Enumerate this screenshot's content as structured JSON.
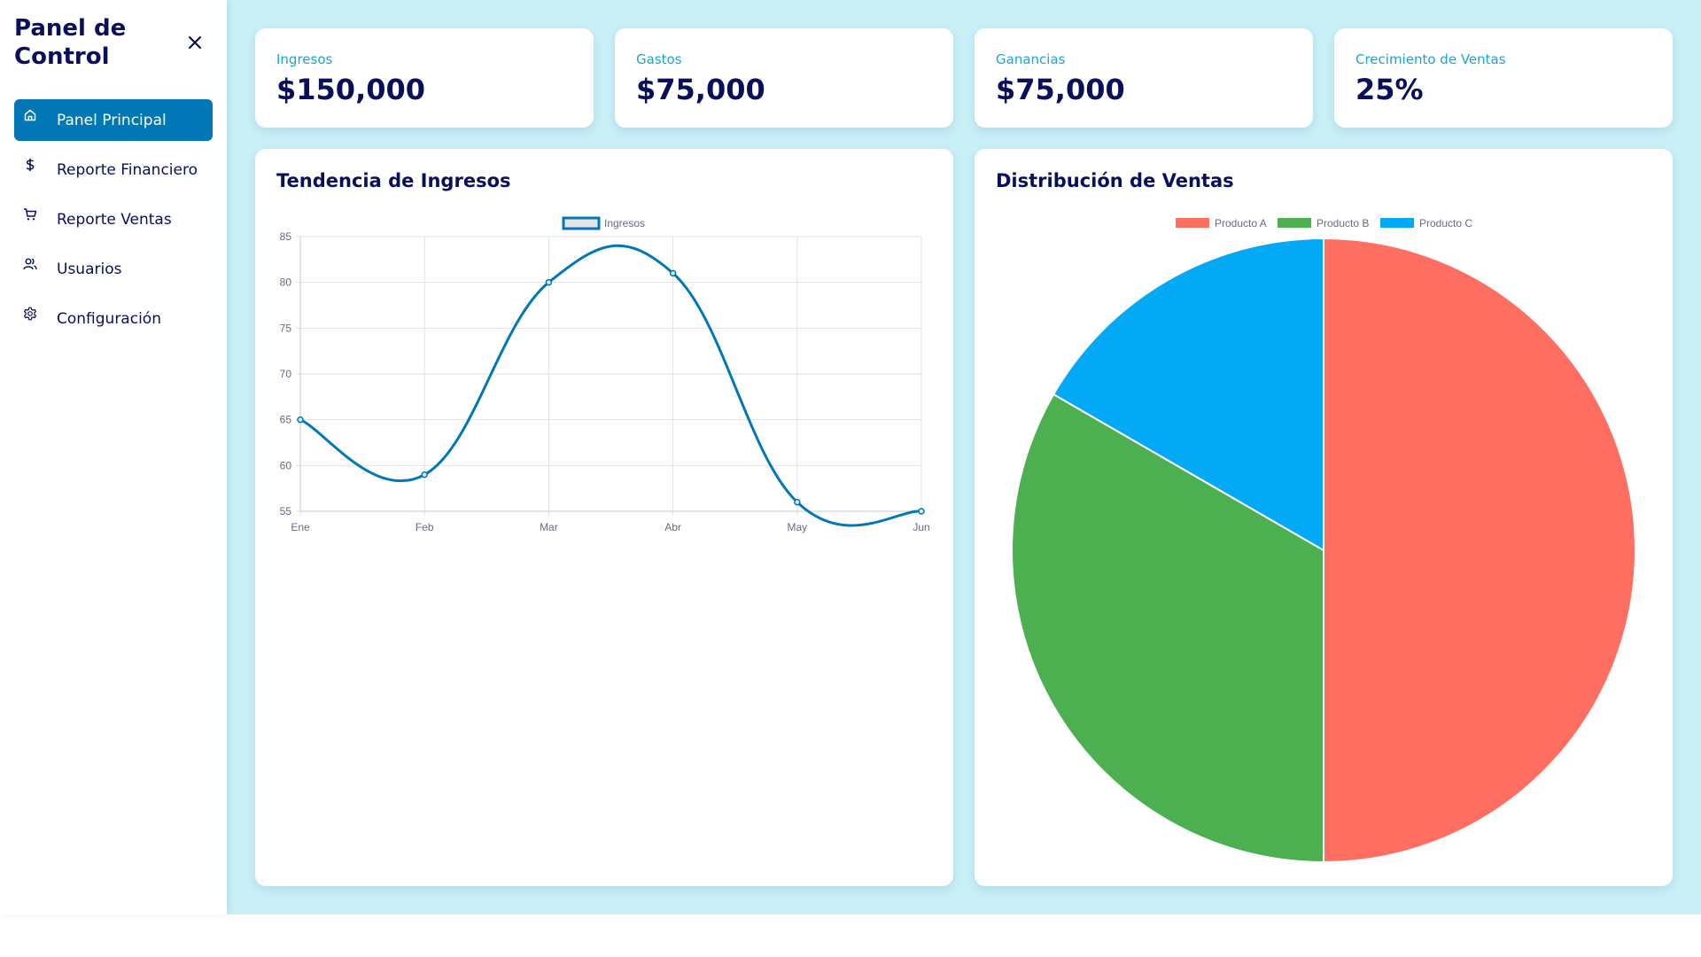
{
  "sidebar": {
    "title": "Panel de Control",
    "close_icon": "close-icon",
    "items": [
      {
        "label": "Panel Principal",
        "icon": "home-icon",
        "active": true
      },
      {
        "label": "Reporte Financiero",
        "icon": "dollar-icon",
        "active": false
      },
      {
        "label": "Reporte Ventas",
        "icon": "cart-icon",
        "active": false
      },
      {
        "label": "Usuarios",
        "icon": "users-icon",
        "active": false
      },
      {
        "label": "Configuración",
        "icon": "gear-icon",
        "active": false
      }
    ]
  },
  "stats": [
    {
      "label": "Ingresos",
      "value": "$150,000"
    },
    {
      "label": "Gastos",
      "value": "$75,000"
    },
    {
      "label": "Ganancias",
      "value": "$75,000"
    },
    {
      "label": "Crecimiento de Ventas",
      "value": "25%"
    }
  ],
  "colors": {
    "accent": "#0277b6",
    "title": "#0a0f5c",
    "stat_label": "#1aa6d1",
    "background": "#c9eff7"
  },
  "chart_data": [
    {
      "type": "line",
      "title": "Tendencia de Ingresos",
      "categories": [
        "Ene",
        "Feb",
        "Mar",
        "Abr",
        "May",
        "Jun"
      ],
      "series": [
        {
          "name": "Ingresos",
          "values": [
            65,
            59,
            80,
            81,
            56,
            55
          ],
          "color": "#0277b6"
        }
      ],
      "ylim": [
        55,
        85
      ],
      "yticks": [
        55,
        60,
        65,
        70,
        75,
        80,
        85
      ],
      "grid": true,
      "legend": "top-center",
      "xlabel": "",
      "ylabel": ""
    },
    {
      "type": "pie",
      "title": "Distribución de Ventas",
      "categories": [
        "Producto A",
        "Producto B",
        "Producto C"
      ],
      "values": [
        300,
        200,
        100
      ],
      "colors": [
        "#ff6f61",
        "#4caf50",
        "#03a9f4"
      ],
      "legend": "top-center"
    }
  ]
}
